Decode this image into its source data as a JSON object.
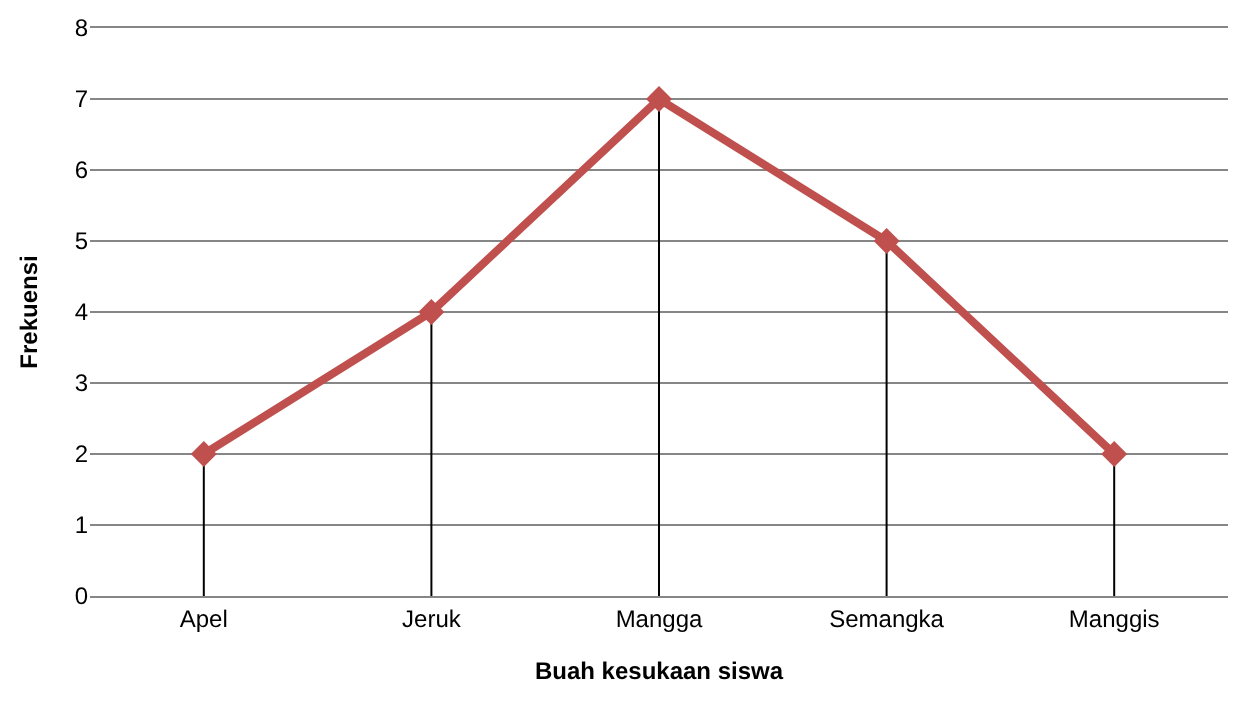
{
  "chart_data": {
    "type": "line",
    "xlabel": "Buah kesukaan siswa",
    "ylabel": "Frekuensi",
    "categories": [
      "Apel",
      "Jeruk",
      "Mangga",
      "Semangka",
      "Manggis"
    ],
    "series": [
      {
        "color": "#c0504d",
        "values": [
          2,
          4,
          7,
          5,
          2
        ],
        "errors": [
          [
            0,
            2
          ],
          [
            0,
            4
          ],
          [
            0,
            7
          ],
          [
            0,
            5
          ],
          [
            0,
            2
          ]
        ]
      }
    ],
    "ylim": [
      0,
      8
    ],
    "yticks": [
      0,
      1,
      2,
      3,
      4,
      5,
      6,
      7,
      8
    ],
    "grid": "y",
    "marker": "diamond",
    "line_style": "solid"
  }
}
